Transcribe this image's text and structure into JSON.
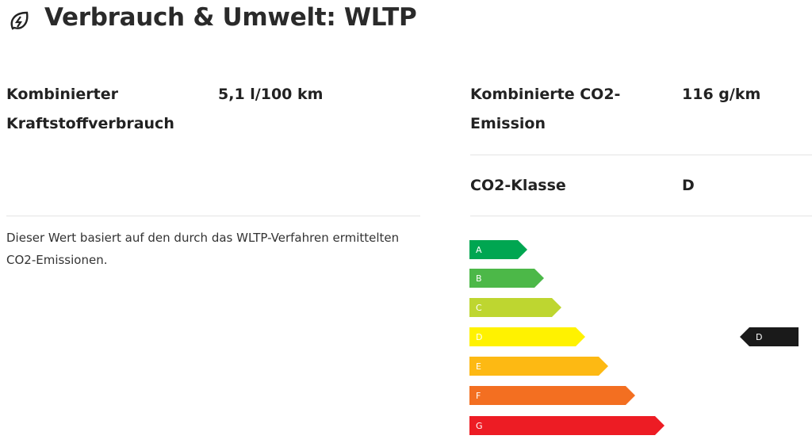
{
  "header": {
    "title": "Verbrauch & Umwelt: WLTP"
  },
  "consumption": {
    "label": "Kombinierter Kraftstoffverbrauch",
    "value": "5,1 l/100 km",
    "note": "Dieser Wert basiert auf den durch das WLTP-Verfahren ermittelten CO2-Emissionen."
  },
  "emissions": {
    "rows": [
      {
        "label": "Kombinierte CO2-Emission",
        "value": "116 g/km"
      },
      {
        "label": "CO2-Klasse",
        "value": "D"
      }
    ]
  },
  "energy_label": {
    "classes": [
      "A",
      "B",
      "C",
      "D",
      "E",
      "F",
      "G"
    ],
    "indicator": "D"
  }
}
